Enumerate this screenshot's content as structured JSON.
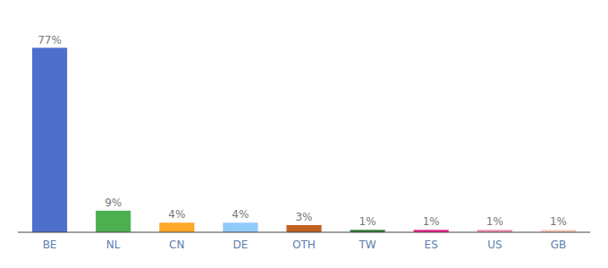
{
  "chart_data": {
    "type": "bar",
    "categories": [
      "BE",
      "NL",
      "CN",
      "DE",
      "OTH",
      "TW",
      "ES",
      "US",
      "GB"
    ],
    "values": [
      77,
      9,
      4,
      4,
      3,
      1,
      1,
      1,
      1
    ],
    "value_labels": [
      "77%",
      "9%",
      "4%",
      "4%",
      "3%",
      "1%",
      "1%",
      "1%",
      "1%"
    ],
    "colors": [
      "#4e6fcc",
      "#4caf50",
      "#ffa726",
      "#90caf9",
      "#bf6020",
      "#2e7d32",
      "#e91e8c",
      "#f48fb1",
      "#ffccbc"
    ],
    "ylim": [
      0,
      88
    ],
    "grid": false,
    "data_labels": true,
    "tick_labels": "x"
  }
}
